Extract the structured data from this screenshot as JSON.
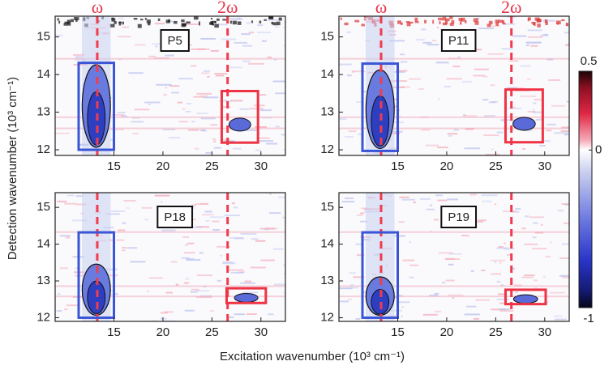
{
  "chart_data": {
    "type": "heatmap",
    "xlabel": "Excitation wavenumber (10³ cm⁻¹)",
    "ylabel": "Detection wavenumber (10³ cm⁻¹)",
    "annotations": [
      {
        "label": "ω",
        "x": 13.3
      },
      {
        "label": "2ω",
        "x": 26.6
      }
    ],
    "colorbar": {
      "lim": [
        -1,
        0.5
      ],
      "ticks": [
        0.5,
        0,
        -1
      ]
    },
    "panels": [
      {
        "title": "P5",
        "xlim": [
          9,
          32.5
        ],
        "ylim": [
          11.85,
          15.55
        ],
        "xticks": [
          15,
          20,
          25,
          30
        ],
        "yticks": [
          12,
          13,
          14,
          15
        ],
        "boxes": [
          {
            "color": "#3a55d6",
            "x": [
              11.4,
              15.0
            ],
            "y": [
              12.0,
              14.31
            ]
          },
          {
            "color": "#ee3344",
            "x": [
              26.0,
              29.7
            ],
            "y": [
              12.19,
              13.56
            ]
          }
        ]
      },
      {
        "title": "P11",
        "xlim": [
          9,
          32.5
        ],
        "ylim": [
          11.85,
          15.55
        ],
        "xticks": [
          15,
          20,
          25,
          30
        ],
        "yticks": [
          12,
          13,
          14,
          15
        ],
        "boxes": [
          {
            "color": "#3a55d6",
            "x": [
              11.4,
              15.0
            ],
            "y": [
              11.97,
              14.29
            ]
          },
          {
            "color": "#ee3344",
            "x": [
              26.0,
              29.8
            ],
            "y": [
              12.2,
              13.6
            ]
          }
        ]
      },
      {
        "title": "P18",
        "xlim": [
          9,
          32.5
        ],
        "ylim": [
          11.9,
          15.4
        ],
        "xticks": [
          15,
          20,
          25,
          30
        ],
        "yticks": [
          12,
          13,
          14,
          15
        ],
        "boxes": [
          {
            "color": "#3a55d6",
            "x": [
              11.4,
              15.0
            ],
            "y": [
              12.0,
              14.32
            ]
          },
          {
            "color": "#ee3344",
            "x": [
              26.5,
              30.5
            ],
            "y": [
              12.4,
              12.8
            ]
          }
        ]
      },
      {
        "title": "P19",
        "xlim": [
          9,
          32.5
        ],
        "ylim": [
          11.9,
          15.4
        ],
        "xticks": [
          15,
          20,
          25,
          30
        ],
        "yticks": [
          12,
          13,
          14,
          15
        ],
        "boxes": [
          {
            "color": "#3a55d6",
            "x": [
              11.4,
              15.0
            ],
            "y": [
              12.0,
              14.32
            ]
          },
          {
            "color": "#ee3344",
            "x": [
              26.0,
              30.1
            ],
            "y": [
              12.37,
              12.76
            ]
          }
        ]
      }
    ]
  }
}
